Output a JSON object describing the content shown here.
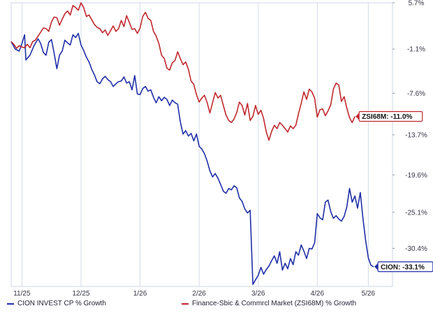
{
  "chart_data": {
    "type": "line",
    "x": [
      "11/25",
      "12/25",
      "1/26",
      "2/26",
      "3/26",
      "4/26",
      "5/26"
    ],
    "yticks": [
      "5.7%",
      "-1.1%",
      "-7.6%",
      "-13.7%",
      "-19.6%",
      "-25.1%",
      "-30.4%"
    ],
    "ylim": [
      -36.0,
      5.7
    ],
    "axis_position": "right",
    "grid": "vertical",
    "legend_placement": "bottom",
    "series": [
      {
        "name": "CION INVEST CP % Growth",
        "color": "#1f2fa8",
        "end_label": "CION: -33.1%",
        "values": [
          [
            0.0,
            0.0
          ],
          [
            1.5,
            -1.1
          ],
          [
            3.0,
            -1.4
          ],
          [
            4.0,
            -0.3
          ],
          [
            5.0,
            1.0
          ],
          [
            5.5,
            -2.7
          ],
          [
            7.0,
            -2.0
          ],
          [
            8.5,
            -0.6
          ],
          [
            10.0,
            0.4
          ],
          [
            11.0,
            -0.3
          ],
          [
            12.0,
            -1.6
          ],
          [
            13.0,
            -2.0
          ],
          [
            14.0,
            -0.1
          ],
          [
            15.0,
            0.3
          ],
          [
            16.0,
            -1.7
          ],
          [
            17.0,
            -4.0
          ],
          [
            18.0,
            -2.0
          ],
          [
            19.0,
            -1.4
          ],
          [
            20.0,
            0.2
          ],
          [
            21.0,
            -0.2
          ],
          [
            22.0,
            -0.5
          ],
          [
            23.0,
            1.0
          ],
          [
            24.0,
            0.6
          ],
          [
            25.0,
            1.2
          ],
          [
            26.0,
            -0.5
          ],
          [
            27.0,
            -1.3
          ],
          [
            28.0,
            -2.3
          ],
          [
            29.0,
            -3.0
          ],
          [
            30.0,
            -4.1
          ],
          [
            31.0,
            -4.9
          ],
          [
            32.0,
            -5.9
          ],
          [
            33.0,
            -6.2
          ],
          [
            34.0,
            -5.5
          ],
          [
            35.0,
            -5.1
          ],
          [
            36.0,
            -5.6
          ],
          [
            37.0,
            -5.9
          ],
          [
            38.0,
            -6.6
          ],
          [
            39.0,
            -6.2
          ],
          [
            40.0,
            -5.9
          ],
          [
            41.0,
            -5.8
          ],
          [
            42.0,
            -5.2
          ],
          [
            43.0,
            -6.1
          ],
          [
            44.0,
            -5.9
          ],
          [
            45.0,
            -7.1
          ],
          [
            46.0,
            -5.0
          ],
          [
            47.0,
            -7.7
          ],
          [
            48.0,
            -7.8
          ],
          [
            49.0,
            -6.9
          ],
          [
            50.0,
            -6.6
          ],
          [
            51.0,
            -7.3
          ],
          [
            52.0,
            -7.1
          ],
          [
            53.0,
            -8.2
          ],
          [
            54.0,
            -9.0
          ],
          [
            55.0,
            -8.1
          ],
          [
            56.0,
            -8.7
          ],
          [
            57.0,
            -8.2
          ],
          [
            58.0,
            -8.5
          ],
          [
            59.0,
            -9.4
          ],
          [
            60.0,
            -8.6
          ],
          [
            61.0,
            -9.0
          ],
          [
            62.0,
            -9.2
          ],
          [
            63.0,
            -11.8
          ],
          [
            64.0,
            -13.6
          ],
          [
            65.0,
            -13.1
          ],
          [
            66.0,
            -13.9
          ],
          [
            67.0,
            -13.5
          ],
          [
            68.0,
            -14.6
          ],
          [
            69.0,
            -13.6
          ],
          [
            70.0,
            -15.4
          ],
          [
            71.0,
            -15.8
          ],
          [
            72.0,
            -16.5
          ],
          [
            73.0,
            -17.6
          ],
          [
            74.0,
            -19.0
          ],
          [
            75.0,
            -19.9
          ],
          [
            76.0,
            -19.4
          ],
          [
            77.0,
            -20.1
          ],
          [
            78.0,
            -21.0
          ],
          [
            79.0,
            -22.0
          ],
          [
            80.0,
            -22.3
          ],
          [
            81.0,
            -21.6
          ],
          [
            82.0,
            -21.8
          ],
          [
            83.0,
            -21.2
          ],
          [
            84.0,
            -21.5
          ],
          [
            85.0,
            -23.0
          ],
          [
            86.0,
            -23.5
          ],
          [
            87.0,
            -24.6
          ],
          [
            88.0,
            -25.2
          ],
          [
            89.0,
            -24.8
          ],
          [
            90.0,
            -35.7
          ],
          [
            91.0,
            -35.0
          ],
          [
            92.0,
            -34.4
          ],
          [
            93.0,
            -33.2
          ],
          [
            94.0,
            -34.2
          ],
          [
            95.0,
            -33.5
          ],
          [
            96.0,
            -33.0
          ],
          [
            97.0,
            -32.2
          ],
          [
            98.0,
            -31.5
          ],
          [
            99.0,
            -32.6
          ],
          [
            100.0,
            -30.9
          ],
          [
            101.0,
            -33.6
          ],
          [
            102.0,
            -32.6
          ],
          [
            103.0,
            -33.4
          ],
          [
            104.0,
            -31.9
          ],
          [
            105.0,
            -32.8
          ],
          [
            106.0,
            -30.9
          ],
          [
            107.0,
            -31.4
          ],
          [
            108.0,
            -29.9
          ],
          [
            109.0,
            -30.8
          ],
          [
            110.0,
            -31.9
          ],
          [
            111.0,
            -30.4
          ],
          [
            112.0,
            -30.5
          ],
          [
            113.0,
            -29.6
          ],
          [
            114.0,
            -25.3
          ],
          [
            115.0,
            -25.9
          ],
          [
            116.0,
            -26.2
          ],
          [
            117.0,
            -23.6
          ],
          [
            118.0,
            -23.3
          ],
          [
            119.0,
            -25.0
          ],
          [
            120.0,
            -26.0
          ],
          [
            121.0,
            -25.6
          ],
          [
            122.0,
            -26.1
          ],
          [
            123.0,
            -26.4
          ],
          [
            124.0,
            -25.7
          ],
          [
            125.0,
            -24.3
          ],
          [
            126.0,
            -21.6
          ],
          [
            127.0,
            -23.6
          ],
          [
            128.0,
            -22.7
          ],
          [
            129.0,
            -24.5
          ],
          [
            130.0,
            -22.2
          ],
          [
            131.0,
            -26.0
          ],
          [
            132.0,
            -29.2
          ],
          [
            133.0,
            -31.8
          ],
          [
            134.0,
            -32.9
          ],
          [
            135.0,
            -33.1
          ]
        ]
      },
      {
        "name": "Finance-Sbic & Commrcl Market (ZSI68M) % Growth",
        "color": "#c0282d",
        "end_label": "ZSI68M: -11.0%",
        "values": [
          [
            0.0,
            0.0
          ],
          [
            1.0,
            -0.4
          ],
          [
            2.0,
            -1.0
          ],
          [
            3.0,
            -0.6
          ],
          [
            4.0,
            -0.8
          ],
          [
            5.0,
            -0.9
          ],
          [
            6.0,
            -0.4
          ],
          [
            7.0,
            -0.9
          ],
          [
            8.0,
            0.0
          ],
          [
            9.0,
            0.2
          ],
          [
            10.0,
            0.8
          ],
          [
            11.0,
            1.4
          ],
          [
            12.0,
            2.0
          ],
          [
            13.0,
            1.9
          ],
          [
            14.0,
            1.5
          ],
          [
            15.0,
            2.9
          ],
          [
            16.0,
            3.6
          ],
          [
            17.0,
            3.5
          ],
          [
            18.0,
            2.4
          ],
          [
            19.0,
            3.3
          ],
          [
            20.0,
            4.1
          ],
          [
            21.0,
            4.5
          ],
          [
            22.0,
            3.9
          ],
          [
            23.0,
            5.3
          ],
          [
            24.0,
            5.0
          ],
          [
            25.0,
            4.6
          ],
          [
            26.0,
            5.7
          ],
          [
            27.0,
            5.0
          ],
          [
            28.0,
            3.7
          ],
          [
            29.0,
            3.9
          ],
          [
            30.0,
            3.2
          ],
          [
            31.0,
            2.5
          ],
          [
            32.0,
            2.1
          ],
          [
            33.0,
            1.9
          ],
          [
            34.0,
            1.3
          ],
          [
            35.0,
            1.7
          ],
          [
            36.0,
            0.9
          ],
          [
            37.0,
            1.6
          ],
          [
            38.0,
            2.3
          ],
          [
            39.0,
            1.5
          ],
          [
            40.0,
            1.9
          ],
          [
            41.0,
            3.1
          ],
          [
            42.0,
            2.2
          ],
          [
            43.0,
            3.8
          ],
          [
            44.0,
            2.8
          ],
          [
            45.0,
            1.8
          ],
          [
            46.0,
            1.9
          ],
          [
            47.0,
            1.2
          ],
          [
            48.0,
            2.0
          ],
          [
            49.0,
            3.7
          ],
          [
            50.0,
            4.3
          ],
          [
            51.0,
            3.4
          ],
          [
            52.0,
            3.1
          ],
          [
            53.0,
            1.5
          ],
          [
            54.0,
            0.8
          ],
          [
            55.0,
            -0.3
          ],
          [
            56.0,
            -2.0
          ],
          [
            57.0,
            -2.5
          ],
          [
            58.0,
            -3.9
          ],
          [
            59.0,
            -4.2
          ],
          [
            60.0,
            -3.1
          ],
          [
            61.0,
            -2.8
          ],
          [
            62.0,
            -1.5
          ],
          [
            63.0,
            -2.5
          ],
          [
            64.0,
            -3.4
          ],
          [
            65.0,
            -3.0
          ],
          [
            66.0,
            -4.1
          ],
          [
            67.0,
            -5.8
          ],
          [
            68.0,
            -6.3
          ],
          [
            69.0,
            -7.8
          ],
          [
            70.0,
            -8.9
          ],
          [
            71.0,
            -8.3
          ],
          [
            72.0,
            -7.9
          ],
          [
            73.0,
            -9.0
          ],
          [
            74.0,
            -10.5
          ],
          [
            75.0,
            -9.0
          ],
          [
            76.0,
            -7.5
          ],
          [
            77.0,
            -8.3
          ],
          [
            78.0,
            -7.9
          ],
          [
            79.0,
            -9.4
          ],
          [
            80.0,
            -10.8
          ],
          [
            81.0,
            -11.6
          ],
          [
            82.0,
            -11.9
          ],
          [
            83.0,
            -11.4
          ],
          [
            84.0,
            -10.4
          ],
          [
            85.0,
            -8.9
          ],
          [
            86.0,
            -9.4
          ],
          [
            87.0,
            -10.8
          ],
          [
            88.0,
            -9.1
          ],
          [
            89.0,
            -11.6
          ],
          [
            90.0,
            -11.0
          ],
          [
            91.0,
            -9.4
          ],
          [
            92.0,
            -10.7
          ],
          [
            93.0,
            -10.1
          ],
          [
            94.0,
            -11.3
          ],
          [
            95.0,
            -13.3
          ],
          [
            96.0,
            -14.5
          ],
          [
            97.0,
            -13.2
          ],
          [
            98.0,
            -12.3
          ],
          [
            99.0,
            -12.8
          ],
          [
            100.0,
            -11.9
          ],
          [
            101.0,
            -12.3
          ],
          [
            102.0,
            -12.8
          ],
          [
            103.0,
            -13.3
          ],
          [
            104.0,
            -12.4
          ],
          [
            105.0,
            -12.8
          ],
          [
            106.0,
            -12.3
          ],
          [
            107.0,
            -10.6
          ],
          [
            108.0,
            -9.1
          ],
          [
            109.0,
            -7.4
          ],
          [
            110.0,
            -8.5
          ],
          [
            111.0,
            -7.0
          ],
          [
            112.0,
            -7.4
          ],
          [
            113.0,
            -8.3
          ],
          [
            114.0,
            -11.1
          ],
          [
            115.0,
            -10.0
          ],
          [
            116.0,
            -9.9
          ],
          [
            117.0,
            -10.9
          ],
          [
            118.0,
            -10.2
          ],
          [
            119.0,
            -9.3
          ],
          [
            120.0,
            -7.0
          ],
          [
            121.0,
            -6.1
          ],
          [
            122.0,
            -6.4
          ],
          [
            123.0,
            -8.8
          ],
          [
            124.0,
            -8.1
          ],
          [
            125.0,
            -9.8
          ],
          [
            126.0,
            -11.2
          ],
          [
            127.0,
            -11.9
          ],
          [
            128.0,
            -11.0
          ]
        ]
      }
    ]
  }
}
